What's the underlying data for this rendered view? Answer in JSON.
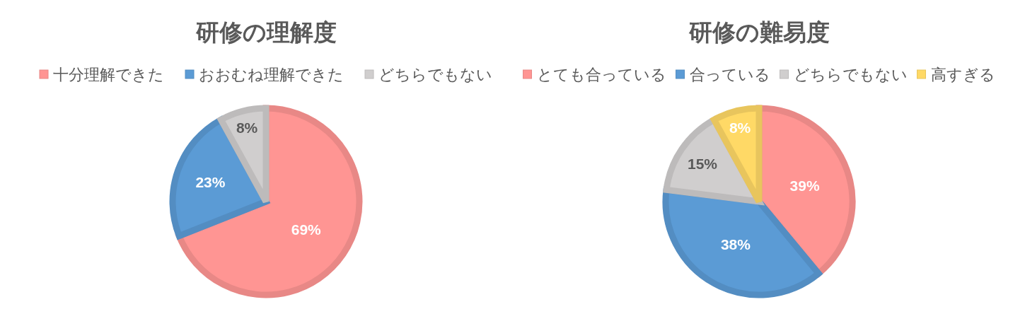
{
  "chart_data": [
    {
      "type": "pie",
      "title": "研修の理解度",
      "categories": [
        "十分理解できた",
        "おおむね理解できた",
        "どちらでもない"
      ],
      "values": [
        69,
        23,
        8
      ],
      "colors": [
        "#ff9593",
        "#5b9bd5",
        "#d0cece"
      ],
      "value_labels": [
        "69%",
        "23%",
        "8%"
      ],
      "legend": "top"
    },
    {
      "type": "pie",
      "title": "研修の難易度",
      "categories": [
        "とても合っている",
        "合っている",
        "どちらでもない",
        "高すぎる"
      ],
      "values": [
        39,
        38,
        15,
        8
      ],
      "colors": [
        "#ff9593",
        "#5b9bd5",
        "#d0cece",
        "#ffd966"
      ],
      "value_labels": [
        "39%",
        "38%",
        "15%",
        "8%"
      ],
      "legend": "top"
    }
  ]
}
